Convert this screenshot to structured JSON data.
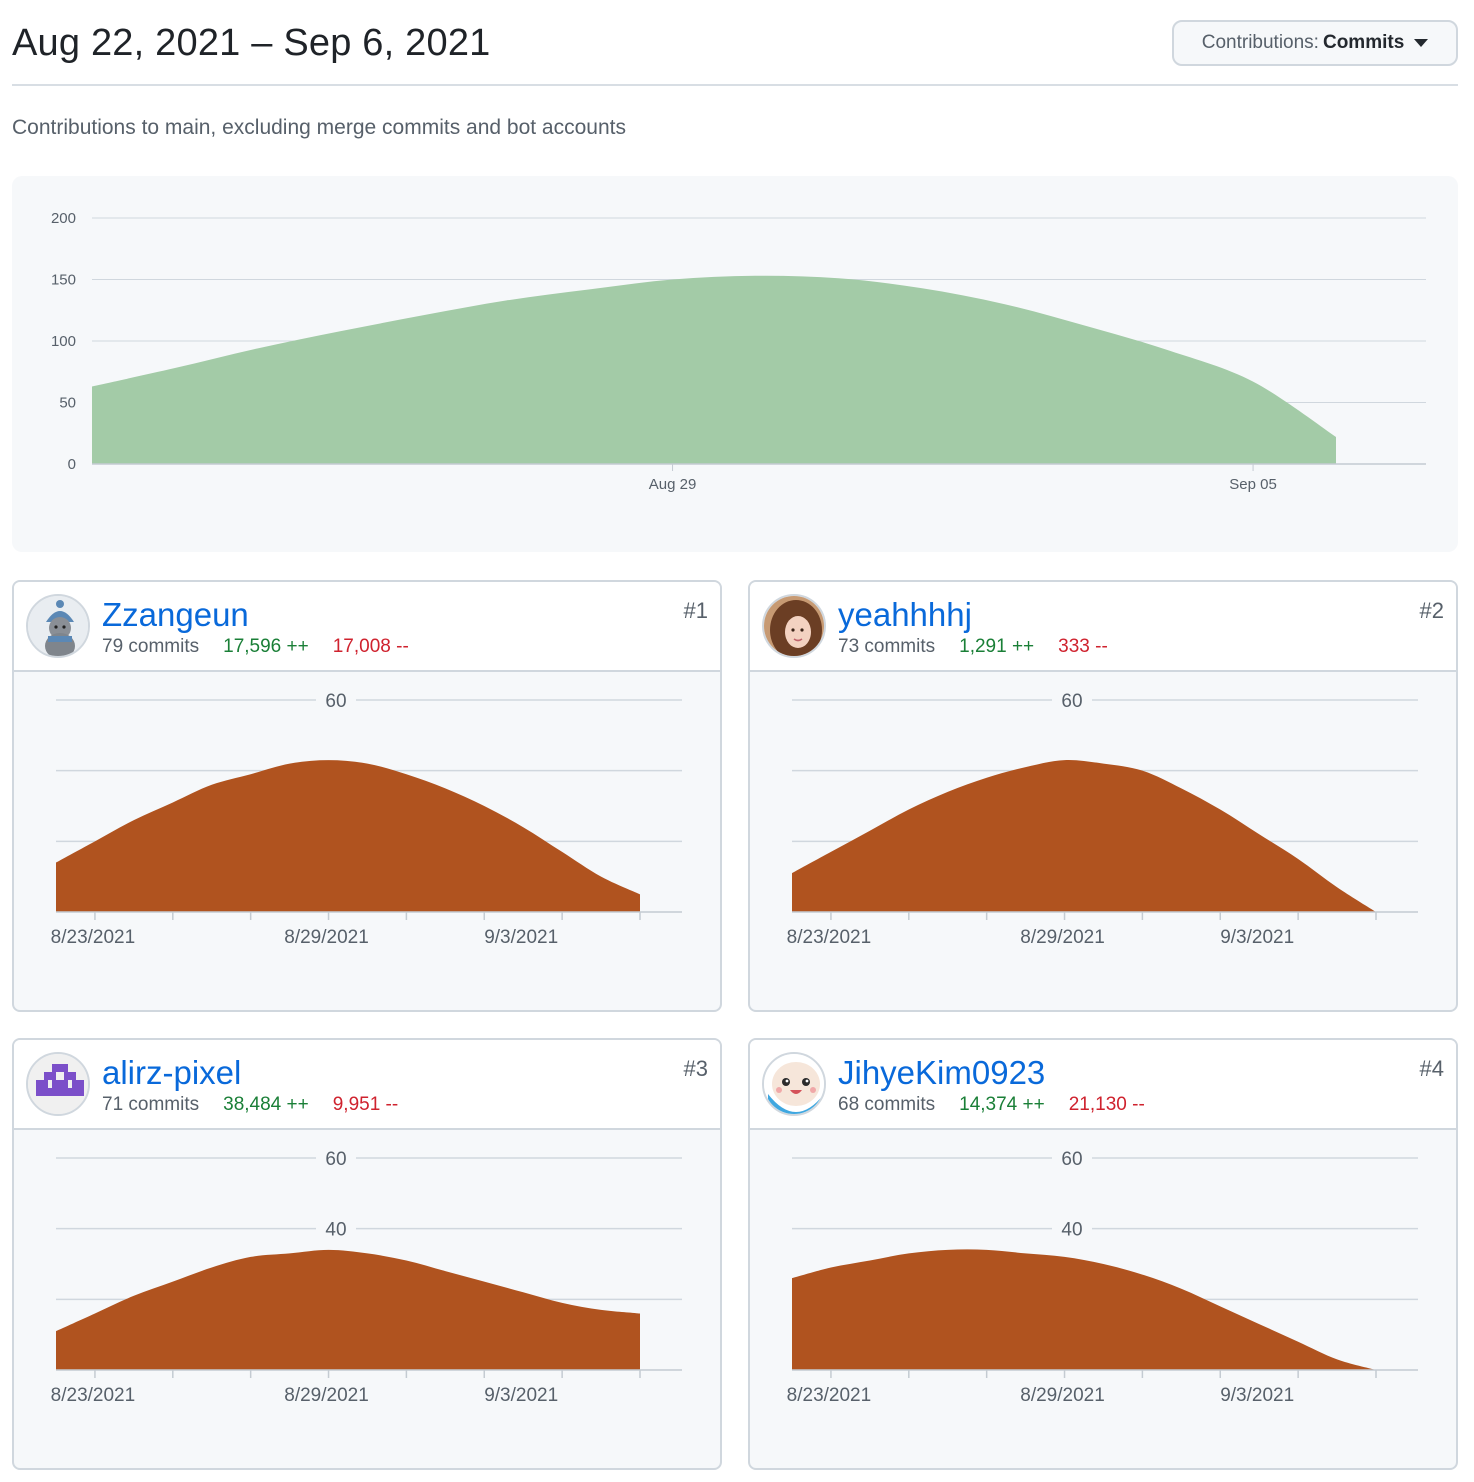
{
  "header": {
    "title": "Aug 22, 2021 – Sep 6, 2021",
    "dropdown_prefix": "Contributions:",
    "dropdown_value": "Commits"
  },
  "subtitle": "Contributions to main, excluding merge commits and bot accounts",
  "colors": {
    "main_area": "#a3cba7",
    "contributor_area": "#b0531f",
    "link": "#0969da",
    "additions": "#1a7f37",
    "deletions": "#cf222e"
  },
  "chart_data": [
    {
      "id": "overview",
      "type": "area",
      "x_dates": [
        "2021-08-22",
        "2021-08-23",
        "2021-08-24",
        "2021-08-25",
        "2021-08-26",
        "2021-08-27",
        "2021-08-28",
        "2021-08-29",
        "2021-08-30",
        "2021-08-31",
        "2021-09-01",
        "2021-09-02",
        "2021-09-03",
        "2021-09-04",
        "2021-09-05",
        "2021-09-06"
      ],
      "values": [
        63,
        78,
        94,
        108,
        121,
        133,
        142,
        150,
        153,
        151,
        143,
        130,
        112,
        92,
        67,
        22
      ],
      "y_ticks": [
        0,
        50,
        100,
        150,
        200
      ],
      "ylim": [
        0,
        200
      ],
      "x_tick_labels": [
        "Aug 29",
        "Sep 05"
      ],
      "grid": true
    },
    {
      "id": "Zzangeun",
      "type": "area",
      "values": [
        14,
        20,
        26,
        31,
        36,
        39,
        42,
        43,
        42,
        39,
        35,
        30,
        24,
        17,
        10,
        5
      ],
      "y_ticks": [
        60
      ],
      "ylim": [
        0,
        60
      ],
      "x_tick_labels": [
        "8/23/2021",
        "8/29/2021",
        "9/3/2021"
      ]
    },
    {
      "id": "yeahhhhj",
      "type": "area",
      "values": [
        11,
        17,
        23,
        29,
        34,
        38,
        41,
        43,
        42,
        40,
        35,
        29,
        22,
        15,
        7,
        0
      ],
      "y_ticks": [
        60
      ],
      "ylim": [
        0,
        60
      ],
      "x_tick_labels": [
        "8/23/2021",
        "8/29/2021",
        "9/3/2021"
      ]
    },
    {
      "id": "alirz-pixel",
      "type": "area",
      "values": [
        11,
        16,
        21,
        25,
        29,
        32,
        33,
        34,
        33,
        31,
        28,
        25,
        22,
        19,
        17,
        16
      ],
      "y_ticks": [
        40,
        60
      ],
      "ylim": [
        0,
        60
      ],
      "x_tick_labels": [
        "8/23/2021",
        "8/29/2021",
        "9/3/2021"
      ]
    },
    {
      "id": "JihyeKim0923",
      "type": "area",
      "values": [
        26,
        29,
        31,
        33,
        34,
        34,
        33,
        32,
        30,
        27,
        23,
        18,
        13,
        8,
        3,
        0
      ],
      "y_ticks": [
        40,
        60
      ],
      "ylim": [
        0,
        60
      ],
      "x_tick_labels": [
        "8/23/2021",
        "8/29/2021",
        "9/3/2021"
      ]
    }
  ],
  "contributors": [
    {
      "login": "Zzangeun",
      "commits": "79 commits",
      "additions": "17,596 ++",
      "deletions": "17,008 --",
      "rank": "#1",
      "avatar_icon": "teddy-bear-avatar"
    },
    {
      "login": "yeahhhhj",
      "commits": "73 commits",
      "additions": "1,291 ++",
      "deletions": "333 --",
      "rank": "#2",
      "avatar_icon": "portrait-avatar"
    },
    {
      "login": "alirz-pixel",
      "commits": "71 commits",
      "additions": "38,484 ++",
      "deletions": "9,951 --",
      "rank": "#3",
      "avatar_icon": "pixel-identicon-avatar"
    },
    {
      "login": "JihyeKim0923",
      "commits": "68 commits",
      "additions": "14,374 ++",
      "deletions": "21,130 --",
      "rank": "#4",
      "avatar_icon": "cartoon-face-avatar"
    }
  ]
}
